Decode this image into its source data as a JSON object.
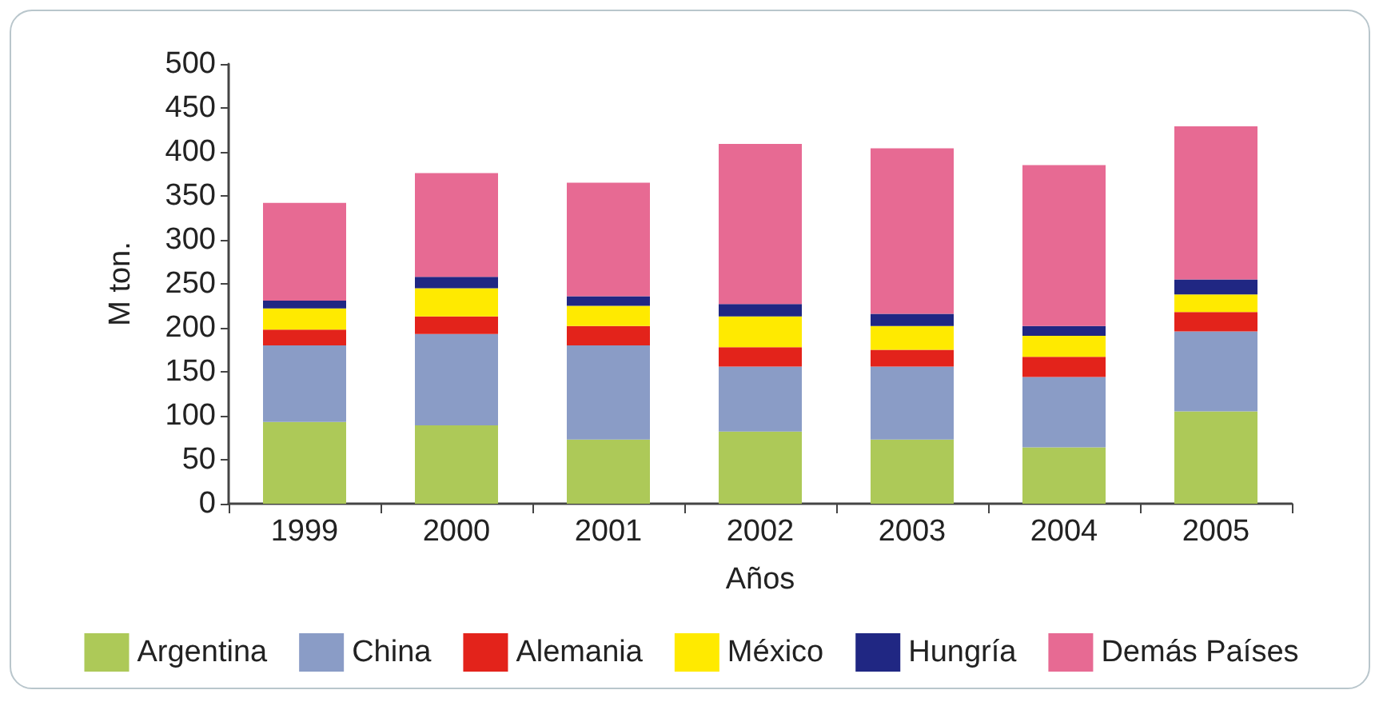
{
  "chart_data": {
    "type": "bar",
    "stacked": true,
    "xlabel": "Años",
    "ylabel": "M ton.",
    "categories": [
      "1999",
      "2000",
      "2001",
      "2002",
      "2003",
      "2004",
      "2005"
    ],
    "series": [
      {
        "name": "Argentina",
        "color": "#adc958",
        "values": [
          93,
          89,
          73,
          82,
          73,
          64,
          105
        ]
      },
      {
        "name": "China",
        "color": "#8a9cc6",
        "values": [
          87,
          104,
          107,
          74,
          83,
          80,
          91
        ]
      },
      {
        "name": "Alemania",
        "color": "#e3231b",
        "values": [
          18,
          20,
          22,
          22,
          19,
          23,
          22
        ]
      },
      {
        "name": "México",
        "color": "#ffea00",
        "values": [
          24,
          32,
          23,
          35,
          27,
          24,
          20
        ]
      },
      {
        "name": "Hungría",
        "color": "#202783",
        "values": [
          9,
          13,
          11,
          14,
          14,
          11,
          17
        ]
      },
      {
        "name": "Demás Países",
        "color": "#e76a93",
        "values": [
          111,
          118,
          129,
          182,
          188,
          183,
          174
        ]
      }
    ],
    "ylim": [
      0,
      500
    ],
    "yticks": [
      0,
      50,
      100,
      150,
      200,
      250,
      300,
      350,
      400,
      450,
      500
    ],
    "grid": false,
    "legend": "bottom"
  }
}
